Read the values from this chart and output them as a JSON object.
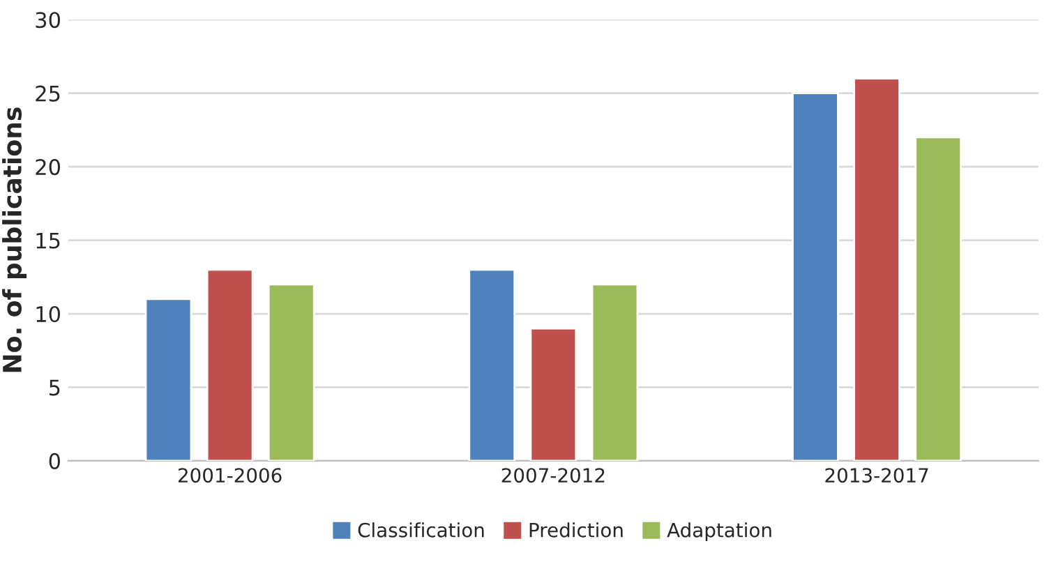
{
  "chart_data": {
    "type": "bar",
    "ylabel": "No. of publications",
    "categories": [
      "2001-2006",
      "2007-2012",
      "2013-2017"
    ],
    "series": [
      {
        "name": "Classification",
        "color": "#4f81bd",
        "values": [
          11,
          13,
          25
        ]
      },
      {
        "name": "Prediction",
        "color": "#c0504d",
        "values": [
          13,
          9,
          26
        ]
      },
      {
        "name": "Adaptation",
        "color": "#9bbb59",
        "values": [
          12,
          12,
          22
        ]
      }
    ],
    "ylim": [
      0,
      30
    ],
    "yticks": [
      0,
      5,
      10,
      15,
      20,
      25,
      30
    ],
    "grid": "y",
    "legend": "bottom"
  }
}
